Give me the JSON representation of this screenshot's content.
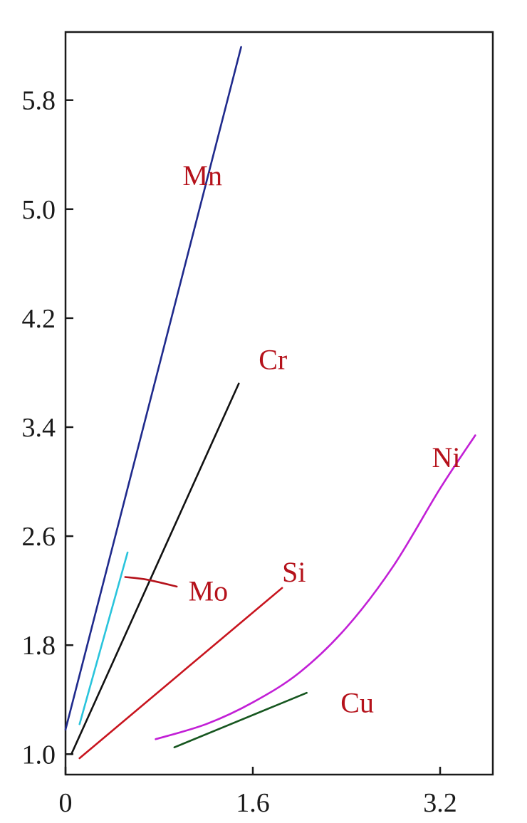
{
  "chart_data": {
    "type": "line",
    "title": "",
    "xlabel": "",
    "ylabel": "",
    "xlim": [
      0,
      3.65
    ],
    "ylim": [
      0.85,
      6.3
    ],
    "grid": false,
    "legend": "none",
    "x_ticks": [
      {
        "value": 0,
        "label": "0"
      },
      {
        "value": 1.6,
        "label": "1.6"
      },
      {
        "value": 3.2,
        "label": "3.2"
      }
    ],
    "y_ticks": [
      {
        "value": 1.0,
        "label": "1.0"
      },
      {
        "value": 1.8,
        "label": "1.8"
      },
      {
        "value": 2.6,
        "label": "2.6"
      },
      {
        "value": 3.4,
        "label": "3.4"
      },
      {
        "value": 4.2,
        "label": "4.2"
      },
      {
        "value": 5.0,
        "label": "5.0"
      },
      {
        "value": 5.8,
        "label": "5.8"
      }
    ],
    "series": [
      {
        "name": "Mn",
        "color": "#1f2a8c",
        "label_color": "#b5121b",
        "label_at": [
          1.0,
          5.25
        ],
        "points": [
          [
            0,
            1.18
          ],
          [
            1.5,
            6.19
          ]
        ]
      },
      {
        "name": "Cr",
        "color": "#111111",
        "label_color": "#b5121b",
        "label_at": [
          1.65,
          3.9
        ],
        "points": [
          [
            0.05,
            1.0
          ],
          [
            1.48,
            3.72
          ]
        ]
      },
      {
        "name": "Mo",
        "color": "#29c4dc",
        "label_color": "#b5121b",
        "label_at": [
          1.05,
          2.2
        ],
        "points": [
          [
            0.12,
            1.22
          ],
          [
            0.53,
            2.48
          ]
        ],
        "leader": [
          [
            0.51,
            2.3
          ],
          [
            0.7,
            2.28
          ],
          [
            0.95,
            2.23
          ]
        ]
      },
      {
        "name": "Si",
        "color": "#c8141e",
        "label_color": "#b5121b",
        "label_at": [
          1.85,
          2.34
        ],
        "points": [
          [
            0.12,
            0.97
          ],
          [
            1.85,
            2.22
          ]
        ]
      },
      {
        "name": "Ni",
        "color": "#c21fd6",
        "label_color": "#b5121b",
        "label_at": [
          3.13,
          3.18
        ],
        "points": [
          [
            0.77,
            1.11
          ],
          [
            1.2,
            1.22
          ],
          [
            1.6,
            1.38
          ],
          [
            2.0,
            1.6
          ],
          [
            2.4,
            1.93
          ],
          [
            2.8,
            2.38
          ],
          [
            3.2,
            2.95
          ],
          [
            3.5,
            3.34
          ]
        ]
      },
      {
        "name": "Cu",
        "color": "#16561f",
        "label_color": "#b5121b",
        "label_at": [
          2.35,
          1.38
        ],
        "points": [
          [
            0.93,
            1.05
          ],
          [
            2.06,
            1.45
          ]
        ]
      }
    ]
  }
}
